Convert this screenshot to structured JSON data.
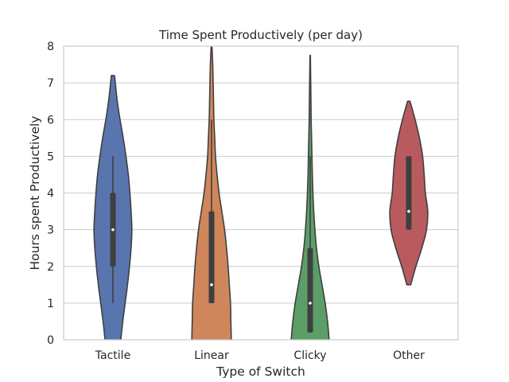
{
  "chart_data": {
    "type": "violin",
    "title": "Time Spent Productively (per day)",
    "xlabel": "Type of Switch",
    "ylabel": "Hours spent Productively",
    "ylim": [
      0,
      8
    ],
    "yticks": [
      "0",
      "1",
      "2",
      "3",
      "4",
      "5",
      "6",
      "7",
      "8"
    ],
    "categories": [
      "Tactile",
      "Linear",
      "Clicky",
      "Other"
    ],
    "grid": true,
    "series": [
      {
        "category": "Tactile",
        "color": "#5875ae",
        "min": 1,
        "q1": 2,
        "median": 3,
        "q3": 4,
        "max": 5,
        "density": [
          [
            -0.5,
            0.16
          ],
          [
            0,
            0.2
          ],
          [
            0.5,
            0.25
          ],
          [
            1,
            0.31
          ],
          [
            1.5,
            0.37
          ],
          [
            2,
            0.42
          ],
          [
            2.5,
            0.46
          ],
          [
            3,
            0.48
          ],
          [
            3.5,
            0.46
          ],
          [
            4,
            0.43
          ],
          [
            4.5,
            0.39
          ],
          [
            5,
            0.33
          ],
          [
            5.5,
            0.26
          ],
          [
            6,
            0.18
          ],
          [
            6.5,
            0.11
          ],
          [
            7,
            0.06
          ],
          [
            7.2,
            0.04
          ]
        ]
      },
      {
        "category": "Linear",
        "color": "#d0865b",
        "min": 1,
        "q1": 1,
        "median": 1.5,
        "q3": 3.5,
        "max": 6,
        "density": [
          [
            -0.5,
            0.5
          ],
          [
            0,
            0.5
          ],
          [
            0.5,
            0.49
          ],
          [
            1,
            0.48
          ],
          [
            1.5,
            0.45
          ],
          [
            2,
            0.42
          ],
          [
            2.5,
            0.38
          ],
          [
            3,
            0.33
          ],
          [
            3.5,
            0.26
          ],
          [
            4,
            0.19
          ],
          [
            4.5,
            0.14
          ],
          [
            5,
            0.1
          ],
          [
            5.5,
            0.08
          ],
          [
            6,
            0.06
          ],
          [
            6.5,
            0.05
          ],
          [
            7,
            0.04
          ],
          [
            7.5,
            0.03
          ],
          [
            8,
            0.01
          ]
        ]
      },
      {
        "category": "Clicky",
        "color": "#5b9e68",
        "min": 0.2,
        "q1": 0.2,
        "median": 1,
        "q3": 2.5,
        "max": 5,
        "density": [
          [
            -0.5,
            0.5
          ],
          [
            0,
            0.48
          ],
          [
            0.5,
            0.44
          ],
          [
            1,
            0.38
          ],
          [
            1.5,
            0.3
          ],
          [
            2,
            0.22
          ],
          [
            2.5,
            0.16
          ],
          [
            3,
            0.12
          ],
          [
            3.5,
            0.09
          ],
          [
            4,
            0.07
          ],
          [
            4.5,
            0.055
          ],
          [
            5,
            0.045
          ],
          [
            5.5,
            0.035
          ],
          [
            6,
            0.025
          ],
          [
            6.5,
            0.02
          ],
          [
            7,
            0.014
          ],
          [
            7.5,
            0.008
          ],
          [
            7.75,
            0.005
          ]
        ]
      },
      {
        "category": "Other",
        "color": "#b95a5f",
        "min": 3,
        "q1": 3,
        "median": 3.5,
        "q3": 5,
        "max": 5,
        "density": [
          [
            1.5,
            0.05
          ],
          [
            2,
            0.18
          ],
          [
            2.5,
            0.33
          ],
          [
            3,
            0.45
          ],
          [
            3.5,
            0.48
          ],
          [
            4,
            0.42
          ],
          [
            4.5,
            0.39
          ],
          [
            5,
            0.35
          ],
          [
            5.5,
            0.27
          ],
          [
            6,
            0.16
          ],
          [
            6.5,
            0.03
          ]
        ]
      }
    ]
  },
  "colors": {
    "grid": "#cccccc",
    "frame": "#cccccc",
    "outline": "#3f3f3f",
    "box": "#3f3f3f",
    "median": "#ffffff"
  }
}
